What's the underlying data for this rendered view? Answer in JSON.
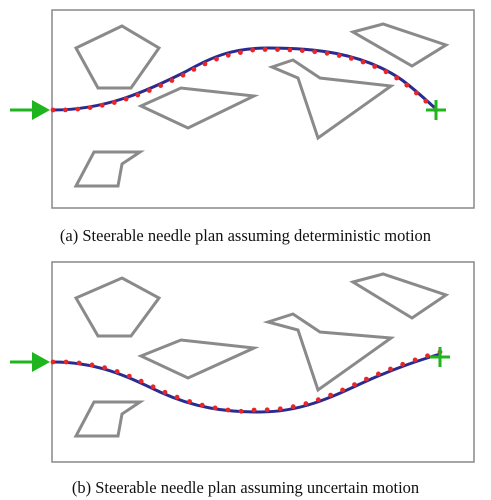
{
  "panels": [
    {
      "id": "a",
      "caption": "(a) Steerable needle plan assuming deterministic motion",
      "obstacle_count": 5
    },
    {
      "id": "b",
      "caption": "(b) Steerable needle plan assuming uncertain motion",
      "obstacle_count": 5
    }
  ],
  "colors": {
    "frame": "#888888",
    "obstacle": "#8a8a8a",
    "planned_path": "#2b2b8f",
    "samples": "#e8262a",
    "start_arrow": "#1fb51f",
    "goal_marker": "#1fb51f"
  },
  "icons": {
    "start": "right-arrow-icon",
    "goal": "plus-icon"
  }
}
